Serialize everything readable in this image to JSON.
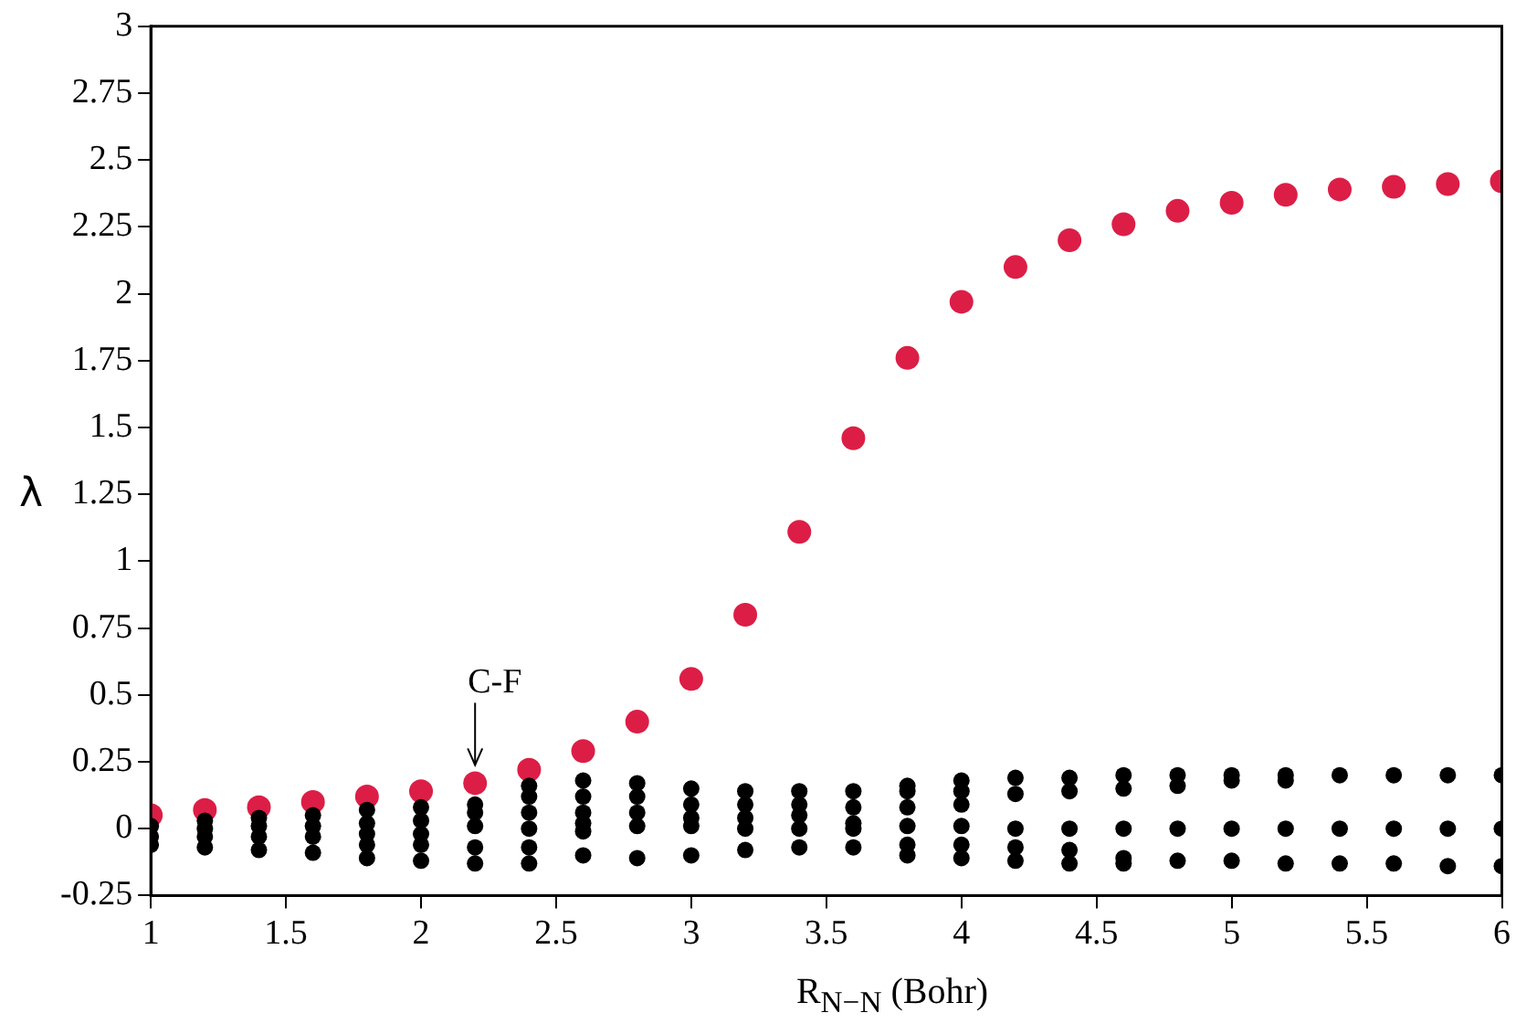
{
  "chart_data": {
    "type": "scatter",
    "xlabel": "R$_{N−N}$ (Bohr)",
    "ylabel": "λ",
    "xlim": [
      1,
      6
    ],
    "xticks": [
      1,
      1.5,
      2,
      2.5,
      3,
      3.5,
      4,
      4.5,
      5,
      5.5,
      6
    ],
    "ylim": [
      -0.25,
      3
    ],
    "yticks": [
      -0.25,
      0,
      0.25,
      0.5,
      0.75,
      1,
      1.25,
      1.5,
      1.75,
      2,
      2.25,
      2.5,
      2.75,
      3
    ],
    "grid": false,
    "legend": false,
    "marker": "circle",
    "annotations": [
      {
        "text": "C-F",
        "x": 2.2,
        "y": 0.17
      }
    ],
    "series": [
      {
        "color": "#000000",
        "x": [
          1,
          1,
          1,
          1.2,
          1.2,
          1.2,
          1.2,
          1.4,
          1.4,
          1.4,
          1.4,
          1.6,
          1.6,
          1.6,
          1.6,
          1.8,
          1.8,
          1.8,
          1.8,
          1.8,
          2,
          2,
          2,
          2,
          2,
          2.2,
          2.2,
          2.2,
          2.2,
          2.2,
          2.4,
          2.4,
          2.4,
          2.4,
          2.4,
          2.4,
          2.6,
          2.6,
          2.6,
          2.6,
          2.6,
          2.6,
          2.8,
          2.8,
          2.8,
          2.8,
          2.8,
          3,
          3,
          3,
          3,
          3,
          3.2,
          3.2,
          3.2,
          3.2,
          3.2,
          3.4,
          3.4,
          3.4,
          3.4,
          3.4,
          3.6,
          3.6,
          3.6,
          3.6,
          3.6,
          3.8,
          3.8,
          3.8,
          3.8,
          3.8,
          3.8,
          4,
          4,
          4,
          4,
          4,
          4,
          4.2,
          4.2,
          4.2,
          4.2,
          4.2,
          4.4,
          4.4,
          4.4,
          4.4,
          4.4,
          4.6,
          4.6,
          4.6,
          4.6,
          4.6,
          4.8,
          4.8,
          4.8,
          4.8,
          5,
          5,
          5,
          5,
          5.2,
          5.2,
          5.2,
          5.2,
          5.4,
          5.4,
          5.4,
          5.6,
          5.6,
          5.6,
          5.8,
          5.8,
          5.8,
          6,
          6,
          6
        ],
        "values": [
          0.01,
          -0.03,
          -0.06,
          0.03,
          0,
          -0.03,
          -0.07,
          0.04,
          0.01,
          -0.03,
          -0.08,
          0.05,
          0.01,
          -0.03,
          -0.09,
          0.07,
          0.02,
          -0.02,
          -0.06,
          -0.11,
          0.08,
          0.03,
          -0.02,
          -0.06,
          -0.12,
          0.09,
          0.06,
          0.01,
          -0.07,
          -0.13,
          0.16,
          0.12,
          0.06,
          0,
          -0.07,
          -0.13,
          0.18,
          0.12,
          0.06,
          0.02,
          -0.01,
          -0.1,
          0.17,
          0.12,
          0.06,
          0.01,
          -0.11,
          0.15,
          0.09,
          0.04,
          0.01,
          -0.1,
          0.14,
          0.09,
          0.04,
          0,
          -0.08,
          0.14,
          0.09,
          0.05,
          0,
          -0.07,
          0.14,
          0.08,
          0.02,
          0,
          -0.07,
          0.16,
          0.14,
          0.08,
          0.01,
          -0.06,
          -0.1,
          0.18,
          0.14,
          0.09,
          0.01,
          -0.06,
          -0.11,
          0.19,
          0.13,
          0,
          -0.07,
          -0.12,
          0.19,
          0.14,
          0,
          -0.08,
          -0.13,
          0.2,
          0.15,
          0,
          -0.11,
          -0.13,
          0.2,
          0.16,
          0,
          -0.12,
          0.2,
          0.18,
          0,
          -0.12,
          0.2,
          0.18,
          0,
          -0.13,
          0.2,
          0,
          -0.13,
          0.2,
          0,
          -0.13,
          0.2,
          0,
          -0.14,
          0.2,
          0,
          -0.14
        ]
      },
      {
        "color": "#dc1e46",
        "x": [
          1,
          1.2,
          1.4,
          1.6,
          1.8,
          2,
          2.2,
          2.4,
          2.6,
          2.8,
          3,
          3.2,
          3.4,
          3.6,
          3.8,
          4,
          4.2,
          4.4,
          4.6,
          4.8,
          5,
          5.2,
          5.4,
          5.6,
          5.8,
          6
        ],
        "values": [
          0.05,
          0.07,
          0.08,
          0.1,
          0.12,
          0.14,
          0.17,
          0.22,
          0.29,
          0.4,
          0.56,
          0.8,
          1.11,
          1.46,
          1.76,
          1.97,
          2.1,
          2.2,
          2.26,
          2.31,
          2.34,
          2.37,
          2.39,
          2.4,
          2.41,
          2.42
        ]
      }
    ]
  }
}
